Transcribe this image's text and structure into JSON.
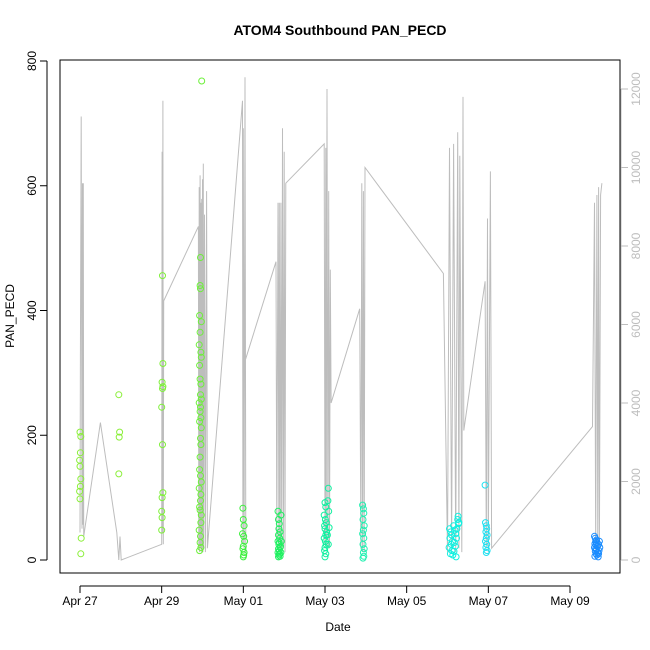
{
  "chart_data": {
    "type": "scatter",
    "title": "ATOM4 Southbound PAN_PECD",
    "xlabel": "Date",
    "ylabel": "PAN_PECD",
    "ylim": [
      0,
      800
    ],
    "yticks": [
      0,
      200,
      400,
      600,
      800
    ],
    "y2lim": [
      0,
      12800
    ],
    "y2ticks": [
      0,
      2000,
      4000,
      6000,
      8000,
      10000,
      12000
    ],
    "xlim": [
      -0.3,
      13.2
    ],
    "xticks": [
      {
        "day": 0,
        "label": "Apr 27"
      },
      {
        "day": 2,
        "label": "Apr 29"
      },
      {
        "day": 4,
        "label": "May 01"
      },
      {
        "day": 6,
        "label": "May 03"
      },
      {
        "day": 8,
        "label": "May 05"
      },
      {
        "day": 10,
        "label": "May 07"
      },
      {
        "day": 12,
        "label": "May 09"
      }
    ],
    "colors": {
      "axis": "#000000",
      "secondary_line": "#bdbdbd",
      "series_start": "#7cf53a",
      "series_end": "#1a8cff"
    },
    "series": [
      {
        "name": "scatter_group_1",
        "color": "#8bef3a",
        "points": [
          [
            0.0,
            205
          ],
          [
            0.02,
            198
          ],
          [
            0.01,
            172
          ],
          [
            -0.01,
            160
          ],
          [
            0.0,
            150
          ],
          [
            0.02,
            130
          ],
          [
            0.01,
            118
          ],
          [
            -0.01,
            110
          ],
          [
            0.0,
            98
          ],
          [
            0.03,
            35
          ],
          [
            0.02,
            10
          ]
        ]
      },
      {
        "name": "scatter_group_2",
        "color": "#8bef3a",
        "points": [
          [
            0.95,
            265
          ],
          [
            0.97,
            205
          ],
          [
            0.96,
            197
          ],
          [
            0.95,
            138
          ]
        ]
      },
      {
        "name": "scatter_group_3",
        "color": "#7ff03a",
        "points": [
          [
            2.02,
            456
          ],
          [
            2.03,
            315
          ],
          [
            2.01,
            285
          ],
          [
            2.03,
            278
          ],
          [
            2.02,
            275
          ],
          [
            2.0,
            245
          ],
          [
            2.02,
            185
          ],
          [
            2.03,
            108
          ],
          [
            2.01,
            100
          ],
          [
            2.0,
            78
          ],
          [
            2.01,
            68
          ],
          [
            2.0,
            48
          ]
        ]
      },
      {
        "name": "scatter_group_4",
        "color": "#6df03a",
        "points": [
          [
            2.95,
            485
          ],
          [
            2.94,
            440
          ],
          [
            2.95,
            435
          ],
          [
            2.93,
            392
          ],
          [
            2.97,
            382
          ],
          [
            2.94,
            365
          ],
          [
            2.92,
            345
          ],
          [
            2.96,
            333
          ],
          [
            2.97,
            325
          ],
          [
            2.93,
            312
          ],
          [
            2.94,
            290
          ],
          [
            2.96,
            282
          ],
          [
            2.95,
            265
          ],
          [
            2.97,
            258
          ],
          [
            2.92,
            252
          ],
          [
            2.95,
            245
          ],
          [
            2.94,
            238
          ],
          [
            2.96,
            228
          ],
          [
            2.93,
            222
          ],
          [
            2.97,
            212
          ],
          [
            2.95,
            195
          ],
          [
            2.96,
            185
          ],
          [
            2.94,
            165
          ],
          [
            2.93,
            145
          ],
          [
            2.95,
            135
          ],
          [
            2.97,
            125
          ],
          [
            2.92,
            115
          ],
          [
            2.96,
            105
          ],
          [
            2.95,
            95
          ],
          [
            2.93,
            85
          ],
          [
            2.94,
            80
          ],
          [
            2.97,
            72
          ],
          [
            2.96,
            60
          ],
          [
            2.92,
            48
          ],
          [
            2.95,
            38
          ],
          [
            2.94,
            28
          ],
          [
            2.96,
            20
          ],
          [
            2.93,
            15
          ],
          [
            2.98,
            768
          ]
        ]
      },
      {
        "name": "scatter_group_5",
        "color": "#3cf03c",
        "points": [
          [
            3.99,
            83
          ],
          [
            4.0,
            65
          ],
          [
            4.02,
            55
          ],
          [
            3.98,
            42
          ],
          [
            4.01,
            38
          ],
          [
            4.03,
            30
          ],
          [
            4.0,
            22
          ],
          [
            3.99,
            18
          ],
          [
            4.02,
            12
          ],
          [
            4.01,
            8
          ],
          [
            4.0,
            5
          ]
        ]
      },
      {
        "name": "scatter_group_6",
        "color": "#1ff060",
        "points": [
          [
            4.85,
            78
          ],
          [
            4.86,
            65
          ],
          [
            4.88,
            58
          ],
          [
            4.87,
            50
          ],
          [
            4.9,
            45
          ],
          [
            4.86,
            40
          ],
          [
            4.89,
            35
          ],
          [
            4.85,
            30
          ],
          [
            4.88,
            28
          ],
          [
            4.87,
            25
          ],
          [
            4.9,
            20
          ],
          [
            4.86,
            18
          ],
          [
            4.88,
            15
          ],
          [
            4.85,
            12
          ],
          [
            4.89,
            10
          ],
          [
            4.87,
            8
          ],
          [
            4.9,
            6
          ],
          [
            4.86,
            5
          ],
          [
            4.92,
            72
          ],
          [
            4.93,
            30
          ],
          [
            4.91,
            22
          ],
          [
            4.92,
            12
          ]
        ]
      },
      {
        "name": "scatter_group_7",
        "color": "#10f0a0",
        "points": [
          [
            6.0,
            92
          ],
          [
            6.02,
            85
          ],
          [
            5.98,
            72
          ],
          [
            6.01,
            65
          ],
          [
            6.03,
            60
          ],
          [
            5.99,
            55
          ],
          [
            6.0,
            50
          ],
          [
            6.04,
            45
          ],
          [
            6.02,
            40
          ],
          [
            5.98,
            35
          ],
          [
            6.01,
            30
          ],
          [
            6.03,
            25
          ],
          [
            6.0,
            20
          ],
          [
            5.99,
            15
          ],
          [
            6.02,
            10
          ],
          [
            6.0,
            5
          ],
          [
            6.08,
            115
          ],
          [
            6.07,
            95
          ],
          [
            6.09,
            78
          ],
          [
            6.1,
            52
          ],
          [
            6.06,
            40
          ],
          [
            6.08,
            25
          ]
        ]
      },
      {
        "name": "scatter_group_8",
        "color": "#20f0b0",
        "points": [
          [
            6.92,
            88
          ],
          [
            6.94,
            82
          ],
          [
            6.95,
            75
          ],
          [
            6.93,
            65
          ],
          [
            6.96,
            55
          ],
          [
            6.94,
            48
          ],
          [
            6.92,
            42
          ],
          [
            6.95,
            35
          ],
          [
            6.93,
            25
          ],
          [
            6.96,
            18
          ],
          [
            6.94,
            12
          ],
          [
            6.95,
            6
          ],
          [
            6.93,
            3
          ]
        ]
      },
      {
        "name": "scatter_group_9",
        "color": "#10f0e0",
        "points": [
          [
            9.05,
            50
          ],
          [
            9.08,
            45
          ],
          [
            9.1,
            40
          ],
          [
            9.06,
            35
          ],
          [
            9.12,
            30
          ],
          [
            9.09,
            25
          ],
          [
            9.04,
            20
          ],
          [
            9.11,
            15
          ],
          [
            9.07,
            10
          ],
          [
            9.13,
            8
          ],
          [
            9.15,
            55
          ],
          [
            9.18,
            48
          ],
          [
            9.2,
            42
          ],
          [
            9.22,
            35
          ],
          [
            9.17,
            28
          ],
          [
            9.25,
            65
          ],
          [
            9.27,
            58
          ],
          [
            9.23,
            50
          ],
          [
            9.19,
            22
          ],
          [
            9.16,
            14
          ],
          [
            9.21,
            5
          ],
          [
            9.26,
            70
          ],
          [
            9.28,
            60
          ]
        ]
      },
      {
        "name": "scatter_group_10",
        "color": "#20e0f0",
        "points": [
          [
            9.92,
            120
          ],
          [
            9.93,
            60
          ],
          [
            9.95,
            55
          ],
          [
            9.96,
            50
          ],
          [
            9.94,
            45
          ],
          [
            9.97,
            40
          ],
          [
            9.95,
            35
          ],
          [
            9.93,
            30
          ],
          [
            9.96,
            25
          ],
          [
            9.94,
            20
          ],
          [
            9.97,
            15
          ],
          [
            9.95,
            12
          ]
        ]
      },
      {
        "name": "scatter_group_11",
        "color": "#1a8cff",
        "points": [
          [
            12.6,
            38
          ],
          [
            12.62,
            35
          ],
          [
            12.65,
            32
          ],
          [
            12.63,
            30
          ],
          [
            12.66,
            28
          ],
          [
            12.61,
            26
          ],
          [
            12.64,
            24
          ],
          [
            12.67,
            22
          ],
          [
            12.6,
            20
          ],
          [
            12.63,
            18
          ],
          [
            12.65,
            16
          ],
          [
            12.62,
            14
          ],
          [
            12.68,
            12
          ],
          [
            12.64,
            10
          ],
          [
            12.66,
            8
          ],
          [
            12.61,
            6
          ],
          [
            12.69,
            5
          ],
          [
            12.7,
            25
          ],
          [
            12.72,
            30
          ],
          [
            12.71,
            15
          ],
          [
            12.73,
            20
          ],
          [
            12.7,
            10
          ]
        ]
      }
    ],
    "secondary_line_y2": [
      [
        0.0,
        700
      ],
      [
        0.01,
        5200
      ],
      [
        0.03,
        11300
      ],
      [
        0.05,
        800
      ],
      [
        0.06,
        9600
      ],
      [
        0.07,
        900
      ],
      [
        0.08,
        9600
      ],
      [
        0.09,
        600
      ],
      [
        0.5,
        3500
      ],
      [
        0.9,
        700
      ],
      [
        0.95,
        0
      ],
      [
        0.98,
        600
      ],
      [
        1.01,
        0
      ],
      [
        2.0,
        400
      ],
      [
        2.01,
        10400
      ],
      [
        2.02,
        700
      ],
      [
        2.03,
        11700
      ],
      [
        2.04,
        400
      ],
      [
        2.05,
        6600
      ],
      [
        2.9,
        8500
      ],
      [
        2.91,
        300
      ],
      [
        2.92,
        9500
      ],
      [
        2.93,
        200
      ],
      [
        2.94,
        9800
      ],
      [
        2.95,
        300
      ],
      [
        2.96,
        9100
      ],
      [
        2.97,
        200
      ],
      [
        2.98,
        9200
      ],
      [
        2.99,
        300
      ],
      [
        3.0,
        9700
      ],
      [
        3.01,
        200
      ],
      [
        3.02,
        10100
      ],
      [
        3.03,
        300
      ],
      [
        3.05,
        8800
      ],
      [
        3.07,
        200
      ],
      [
        3.1,
        9400
      ],
      [
        3.12,
        300
      ],
      [
        3.98,
        11700
      ],
      [
        3.99,
        400
      ],
      [
        4.0,
        11000
      ],
      [
        4.02,
        300
      ],
      [
        4.04,
        12300
      ],
      [
        4.06,
        200
      ],
      [
        4.05,
        5100
      ],
      [
        4.8,
        7600
      ],
      [
        4.82,
        500
      ],
      [
        4.85,
        9100
      ],
      [
        4.87,
        200
      ],
      [
        4.88,
        9100
      ],
      [
        4.9,
        300
      ],
      [
        4.92,
        9100
      ],
      [
        4.94,
        200
      ],
      [
        4.96,
        11000
      ],
      [
        4.98,
        300
      ],
      [
        5.0,
        10400
      ],
      [
        5.02,
        200
      ],
      [
        5.04,
        9600
      ],
      [
        5.98,
        10600
      ],
      [
        6.0,
        400
      ],
      [
        6.02,
        10500
      ],
      [
        6.03,
        300
      ],
      [
        6.05,
        12000
      ],
      [
        6.07,
        300
      ],
      [
        6.09,
        9400
      ],
      [
        6.11,
        300
      ],
      [
        6.13,
        7400
      ],
      [
        6.15,
        4000
      ],
      [
        6.85,
        6400
      ],
      [
        6.88,
        300
      ],
      [
        6.9,
        9600
      ],
      [
        6.92,
        200
      ],
      [
        6.94,
        9400
      ],
      [
        6.96,
        200
      ],
      [
        6.98,
        10000
      ],
      [
        8.9,
        7300
      ],
      [
        9.0,
        200
      ],
      [
        9.05,
        10500
      ],
      [
        9.1,
        300
      ],
      [
        9.15,
        10600
      ],
      [
        9.2,
        200
      ],
      [
        9.25,
        10900
      ],
      [
        9.28,
        300
      ],
      [
        9.3,
        10300
      ],
      [
        9.35,
        200
      ],
      [
        9.38,
        11800
      ],
      [
        9.4,
        3300
      ],
      [
        9.92,
        7100
      ],
      [
        9.95,
        300
      ],
      [
        9.98,
        8700
      ],
      [
        10.0,
        200
      ],
      [
        10.05,
        9900
      ],
      [
        10.08,
        300
      ],
      [
        12.55,
        3400
      ],
      [
        12.6,
        9100
      ],
      [
        12.63,
        300
      ],
      [
        12.66,
        9300
      ],
      [
        12.68,
        200
      ],
      [
        12.7,
        9500
      ],
      [
        12.72,
        300
      ],
      [
        12.75,
        9300
      ],
      [
        12.78,
        9600
      ]
    ]
  }
}
